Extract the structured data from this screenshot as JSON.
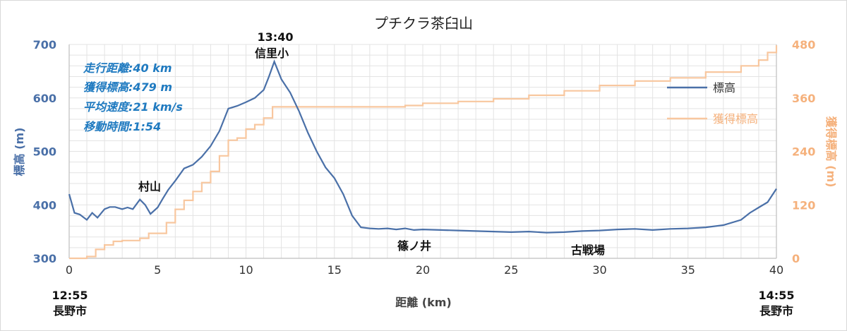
{
  "chart_data": {
    "type": "line",
    "title": "プチクラ茶臼山",
    "xlabel": "距離 (km)",
    "ylabel_left": "標高 (m)",
    "ylabel_right": "獲得標高 (m)",
    "xlim": [
      0,
      40
    ],
    "ylim_left": [
      300,
      700
    ],
    "ylim_right": [
      0,
      480
    ],
    "x_ticks": [
      "0",
      "5",
      "10",
      "15",
      "20",
      "25",
      "30",
      "35",
      "40"
    ],
    "y_left_ticks": [
      "300",
      "400",
      "500",
      "600",
      "700"
    ],
    "y_right_ticks": [
      "0",
      "120",
      "240",
      "360",
      "480"
    ],
    "grid": true,
    "legend_position": "right",
    "colors": {
      "elevation": "#4a70a8",
      "gain": "#f8c79f"
    },
    "series": [
      {
        "name": "標高",
        "axis": "left",
        "x": [
          0,
          0.3,
          0.6,
          1,
          1.3,
          1.6,
          2,
          2.3,
          2.6,
          3,
          3.3,
          3.6,
          4,
          4.3,
          4.6,
          5,
          5.3,
          5.6,
          6,
          6.5,
          7,
          7.5,
          8,
          8.5,
          9,
          9.5,
          10,
          10.5,
          11,
          11.3,
          11.6,
          12,
          12.5,
          13,
          13.5,
          14,
          14.5,
          15,
          15.5,
          16,
          16.5,
          17,
          17.5,
          18,
          18.5,
          19,
          19.5,
          20,
          21,
          22,
          23,
          24,
          25,
          26,
          27,
          28,
          29,
          30,
          31,
          32,
          33,
          34,
          35,
          36,
          37,
          38,
          38.5,
          39,
          39.5,
          40
        ],
        "values": [
          420,
          385,
          382,
          372,
          385,
          376,
          392,
          396,
          396,
          392,
          395,
          392,
          410,
          400,
          383,
          395,
          412,
          428,
          445,
          468,
          475,
          490,
          510,
          538,
          580,
          585,
          592,
          600,
          615,
          640,
          668,
          635,
          610,
          575,
          535,
          500,
          470,
          450,
          420,
          380,
          358,
          356,
          355,
          356,
          354,
          356,
          353,
          354,
          353,
          352,
          351,
          350,
          349,
          350,
          348,
          349,
          351,
          352,
          354,
          355,
          353,
          355,
          356,
          358,
          362,
          372,
          385,
          395,
          405,
          430
        ]
      },
      {
        "name": "獲得標高",
        "axis": "right",
        "x": [
          0,
          0.5,
          1,
          1.5,
          2,
          2.5,
          3,
          3.5,
          4,
          4.5,
          5,
          5.5,
          6,
          6.5,
          7,
          7.5,
          8,
          8.5,
          9,
          9.5,
          10,
          10.5,
          11,
          11.5,
          12,
          13,
          15,
          17,
          19,
          20,
          22,
          24,
          26,
          28,
          30,
          32,
          34,
          36,
          38,
          39,
          39.5,
          40
        ],
        "values": [
          0,
          0,
          4,
          20,
          30,
          38,
          40,
          40,
          45,
          56,
          56,
          80,
          110,
          130,
          150,
          170,
          195,
          230,
          265,
          270,
          290,
          300,
          315,
          340,
          340,
          340,
          340,
          340,
          343,
          348,
          352,
          358,
          366,
          376,
          388,
          398,
          405,
          418,
          432,
          445,
          462,
          478
        ]
      }
    ],
    "annotations": [
      {
        "text": "13:40",
        "x": 11.6
      },
      {
        "text": "信里小",
        "x": 11.6
      },
      {
        "text": "村山",
        "x": 4.6
      },
      {
        "text": "篠ノ井",
        "x": 19.5
      },
      {
        "text": "古戦場",
        "x": 28.4
      },
      {
        "text": "12:55",
        "x": 0
      },
      {
        "text": "長野市",
        "x": 0
      },
      {
        "text": "14:55",
        "x": 40
      },
      {
        "text": "長野市",
        "x": 40
      }
    ],
    "stats": [
      "走行距離:40 km",
      "獲得標高:479 m",
      "平均速度:21 km/s",
      "移動時間:1:54"
    ]
  }
}
